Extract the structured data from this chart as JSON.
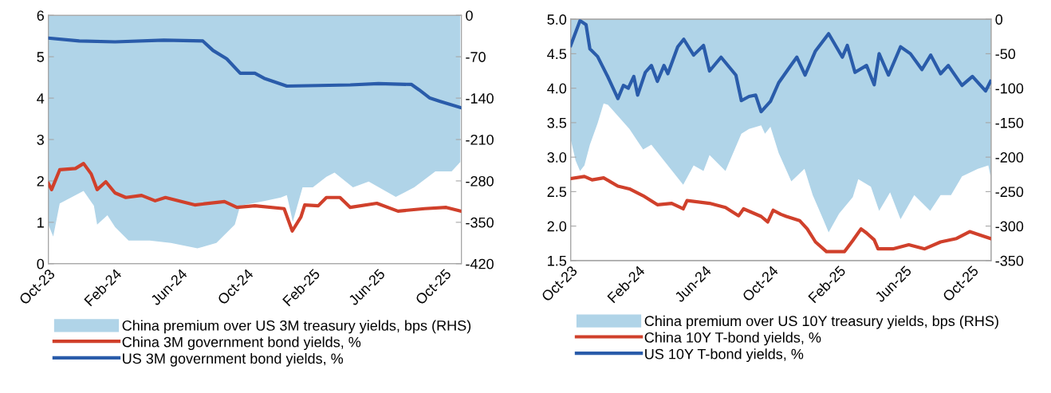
{
  "chart_data": [
    {
      "type": "line",
      "legend": "bottom",
      "grid": false,
      "xlim": [
        "2023-10-01",
        "2025-11-01"
      ],
      "xticks": [
        {
          "value": "2023-10-01",
          "label": "Oct-23"
        },
        {
          "value": "2024-02-01",
          "label": "Feb-24"
        },
        {
          "value": "2024-06-01",
          "label": "Jun-24"
        },
        {
          "value": "2024-10-01",
          "label": "Oct-24"
        },
        {
          "value": "2025-02-01",
          "label": "Feb-25"
        },
        {
          "value": "2025-06-01",
          "label": "Jun-25"
        },
        {
          "value": "2025-10-01",
          "label": "Oct-25"
        }
      ],
      "ylim": [
        0,
        6
      ],
      "yticks": [
        0,
        1,
        2,
        3,
        4,
        5,
        6
      ],
      "y2lim": [
        -420,
        0
      ],
      "y2ticks": [
        0,
        -70,
        -140,
        -210,
        -280,
        -350,
        -420
      ],
      "series": [
        {
          "name": "China premium over US 3M treasury yields, bps (RHS)",
          "type": "area",
          "axis": "y2",
          "color": "#b0d4e8",
          "x": [
            "2023-10-01",
            "2023-10-10",
            "2023-10-22",
            "2023-12-05",
            "2023-12-24",
            "2023-12-30",
            "2024-01-18",
            "2024-02-01",
            "2024-02-26",
            "2024-04-05",
            "2024-05-14",
            "2024-07-02",
            "2024-08-06",
            "2024-09-09",
            "2024-09-19",
            "2024-11-02",
            "2024-12-03",
            "2024-12-14",
            "2024-12-25",
            "2025-01-12",
            "2025-01-31",
            "2025-02-25",
            "2025-03-12",
            "2025-04-15",
            "2025-05-14",
            "2025-07-03",
            "2025-08-06",
            "2025-09-14",
            "2025-10-14",
            "2025-10-30"
          ],
          "values": [
            -354,
            -374,
            -318,
            -297,
            -322,
            -354,
            -338,
            -358,
            -381,
            -381,
            -385,
            -394,
            -385,
            -354,
            -322,
            -314,
            -308,
            -304,
            -349,
            -291,
            -291,
            -273,
            -266,
            -291,
            -281,
            -307,
            -291,
            -264,
            -264,
            -248
          ]
        },
        {
          "name": "China 3M government bond yields, %",
          "color": "#d0402b",
          "x": [
            "2023-10-01",
            "2023-10-07",
            "2023-10-22",
            "2023-11-20",
            "2023-12-05",
            "2023-12-19",
            "2023-12-30",
            "2024-01-15",
            "2024-02-01",
            "2024-02-21",
            "2024-03-21",
            "2024-04-15",
            "2024-05-04",
            "2024-06-27",
            "2024-08-21",
            "2024-09-13",
            "2024-10-16",
            "2024-12-09",
            "2024-12-24",
            "2025-01-09",
            "2025-01-16",
            "2025-02-10",
            "2025-02-25",
            "2025-03-22",
            "2025-04-10",
            "2025-05-29",
            "2025-07-07",
            "2025-08-25",
            "2025-10-04",
            "2025-10-31"
          ],
          "values": [
            1.94,
            1.79,
            2.27,
            2.3,
            2.42,
            2.17,
            1.79,
            1.98,
            1.71,
            1.6,
            1.65,
            1.52,
            1.6,
            1.42,
            1.5,
            1.36,
            1.4,
            1.33,
            0.79,
            1.13,
            1.42,
            1.4,
            1.6,
            1.6,
            1.36,
            1.46,
            1.27,
            1.33,
            1.36,
            1.27
          ]
        },
        {
          "name": "US 3M government bond yields, %",
          "color": "#2a5caa",
          "x": [
            "2023-10-01",
            "2023-11-27",
            "2024-02-01",
            "2024-05-01",
            "2024-07-12",
            "2024-07-31",
            "2024-08-25",
            "2024-09-19",
            "2024-10-16",
            "2024-11-02",
            "2024-12-14",
            "2025-04-10",
            "2025-06-01",
            "2025-08-01",
            "2025-08-15",
            "2025-09-04",
            "2025-09-23",
            "2025-10-31"
          ],
          "values": [
            5.45,
            5.38,
            5.36,
            5.4,
            5.38,
            5.15,
            4.95,
            4.6,
            4.6,
            4.48,
            4.29,
            4.32,
            4.35,
            4.33,
            4.2,
            4.0,
            3.92,
            3.77
          ]
        }
      ]
    },
    {
      "type": "line",
      "legend": "bottom",
      "grid": false,
      "xlim": [
        "2023-10-01",
        "2025-11-05"
      ],
      "xticks": [
        {
          "value": "2023-10-01",
          "label": "Oct-23"
        },
        {
          "value": "2024-02-01",
          "label": "Feb-24"
        },
        {
          "value": "2024-06-01",
          "label": "Jun-24"
        },
        {
          "value": "2024-10-01",
          "label": "Oct-24"
        },
        {
          "value": "2025-02-01",
          "label": "Feb-25"
        },
        {
          "value": "2025-06-01",
          "label": "Jun-25"
        },
        {
          "value": "2025-10-01",
          "label": "Oct-25"
        }
      ],
      "ylim": [
        1.5,
        5.0
      ],
      "yticks": [
        {
          "value": 1.5,
          "label": "1.5"
        },
        {
          "value": 2.0,
          "label": "2.0"
        },
        {
          "value": 2.5,
          "label": "2.5"
        },
        {
          "value": 3.0,
          "label": "3.0"
        },
        {
          "value": 3.5,
          "label": "3.5"
        },
        {
          "value": 4.0,
          "label": "4.0"
        },
        {
          "value": 4.5,
          "label": "4.5"
        },
        {
          "value": 5.0,
          "label": "5.0"
        }
      ],
      "y2lim": [
        -350,
        0
      ],
      "y2ticks": [
        0,
        -50,
        -100,
        -150,
        -200,
        -250,
        -300,
        -350
      ],
      "series": [
        {
          "name": "China premium over US 10Y treasury yields, bps (RHS)",
          "type": "area",
          "axis": "y2",
          "color": "#b0d4e8",
          "x": [
            "2023-10-01",
            "2023-10-10",
            "2023-10-18",
            "2023-10-26",
            "2023-11-05",
            "2023-11-19",
            "2023-11-30",
            "2023-12-08",
            "2023-12-29",
            "2024-01-16",
            "2024-01-31",
            "2024-02-10",
            "2024-02-25",
            "2024-03-19",
            "2024-04-23",
            "2024-05-12",
            "2024-05-30",
            "2024-06-10",
            "2024-07-09",
            "2024-08-07",
            "2024-08-21",
            "2024-09-12",
            "2024-09-19",
            "2024-09-29",
            "2024-10-14",
            "2024-11-06",
            "2024-11-30",
            "2024-12-15",
            "2025-01-03",
            "2025-01-13",
            "2025-02-01",
            "2025-02-26",
            "2025-03-08",
            "2025-03-31",
            "2025-04-15",
            "2025-05-05",
            "2025-05-24",
            "2025-06-18",
            "2025-07-17",
            "2025-08-05",
            "2025-08-24",
            "2025-09-13",
            "2025-10-12",
            "2025-10-31",
            "2025-11-04"
          ],
          "values": [
            -174,
            -205,
            -220,
            -212,
            -182,
            -151,
            -122,
            -124,
            -143,
            -159,
            -177,
            -189,
            -182,
            -205,
            -240,
            -212,
            -220,
            -197,
            -220,
            -166,
            -159,
            -154,
            -166,
            -156,
            -194,
            -235,
            -217,
            -255,
            -290,
            -309,
            -282,
            -258,
            -232,
            -243,
            -278,
            -251,
            -290,
            -255,
            -278,
            -255,
            -255,
            -228,
            -217,
            -212,
            -228
          ]
        },
        {
          "name": "China 10Y T-bond yields, %",
          "color": "#d0402b",
          "x": [
            "2023-10-01",
            "2023-10-26",
            "2023-11-09",
            "2023-11-30",
            "2023-12-26",
            "2024-01-16",
            "2024-02-10",
            "2024-03-07",
            "2024-04-02",
            "2024-04-23",
            "2024-04-30",
            "2024-06-10",
            "2024-07-09",
            "2024-08-02",
            "2024-08-11",
            "2024-09-12",
            "2024-09-24",
            "2024-10-04",
            "2024-10-18",
            "2024-10-28",
            "2024-11-21",
            "2024-12-05",
            "2024-12-20",
            "2025-01-09",
            "2025-02-11",
            "2025-02-26",
            "2025-03-13",
            "2025-03-23",
            "2025-04-06",
            "2025-04-13",
            "2025-05-10",
            "2025-06-08",
            "2025-07-07",
            "2025-08-05",
            "2025-09-03",
            "2025-09-27",
            "2025-10-12",
            "2025-11-04"
          ],
          "values": [
            2.69,
            2.72,
            2.67,
            2.7,
            2.58,
            2.54,
            2.44,
            2.31,
            2.33,
            2.25,
            2.37,
            2.33,
            2.27,
            2.15,
            2.25,
            2.14,
            2.06,
            2.23,
            2.17,
            2.14,
            2.08,
            1.96,
            1.77,
            1.63,
            1.63,
            1.79,
            1.96,
            1.9,
            1.8,
            1.67,
            1.67,
            1.73,
            1.67,
            1.77,
            1.82,
            1.92,
            1.88,
            1.82
          ]
        },
        {
          "name": "US 10Y T-bond yields, %",
          "color": "#2a5caa",
          "x": [
            "2023-10-01",
            "2023-10-11",
            "2023-10-18",
            "2023-10-29",
            "2023-11-05",
            "2023-11-19",
            "2023-12-08",
            "2023-12-26",
            "2024-01-05",
            "2024-01-14",
            "2024-01-24",
            "2024-01-31",
            "2024-02-14",
            "2024-02-25",
            "2024-03-07",
            "2024-03-19",
            "2024-03-26",
            "2024-04-13",
            "2024-04-24",
            "2024-05-12",
            "2024-05-30",
            "2024-06-10",
            "2024-07-01",
            "2024-07-28",
            "2024-08-07",
            "2024-08-21",
            "2024-09-02",
            "2024-09-12",
            "2024-09-29",
            "2024-10-14",
            "2024-11-06",
            "2024-11-16",
            "2024-12-01",
            "2024-12-20",
            "2025-01-13",
            "2025-02-07",
            "2025-02-16",
            "2025-03-02",
            "2025-03-23",
            "2025-04-06",
            "2025-04-15",
            "2025-05-02",
            "2025-05-24",
            "2025-06-11",
            "2025-07-02",
            "2025-07-18",
            "2025-08-05",
            "2025-08-19",
            "2025-09-13",
            "2025-10-02",
            "2025-10-26",
            "2025-11-04"
          ],
          "values": [
            4.62,
            4.83,
            4.98,
            4.92,
            4.57,
            4.46,
            4.16,
            3.85,
            4.04,
            4.0,
            4.17,
            3.9,
            4.23,
            4.33,
            4.1,
            4.33,
            4.21,
            4.6,
            4.71,
            4.48,
            4.62,
            4.25,
            4.45,
            4.19,
            3.82,
            3.88,
            3.9,
            3.66,
            3.81,
            4.08,
            4.34,
            4.45,
            4.19,
            4.54,
            4.79,
            4.45,
            4.62,
            4.23,
            4.33,
            4.05,
            4.5,
            4.19,
            4.6,
            4.5,
            4.27,
            4.48,
            4.21,
            4.33,
            4.04,
            4.17,
            3.96,
            4.1
          ]
        }
      ]
    }
  ]
}
